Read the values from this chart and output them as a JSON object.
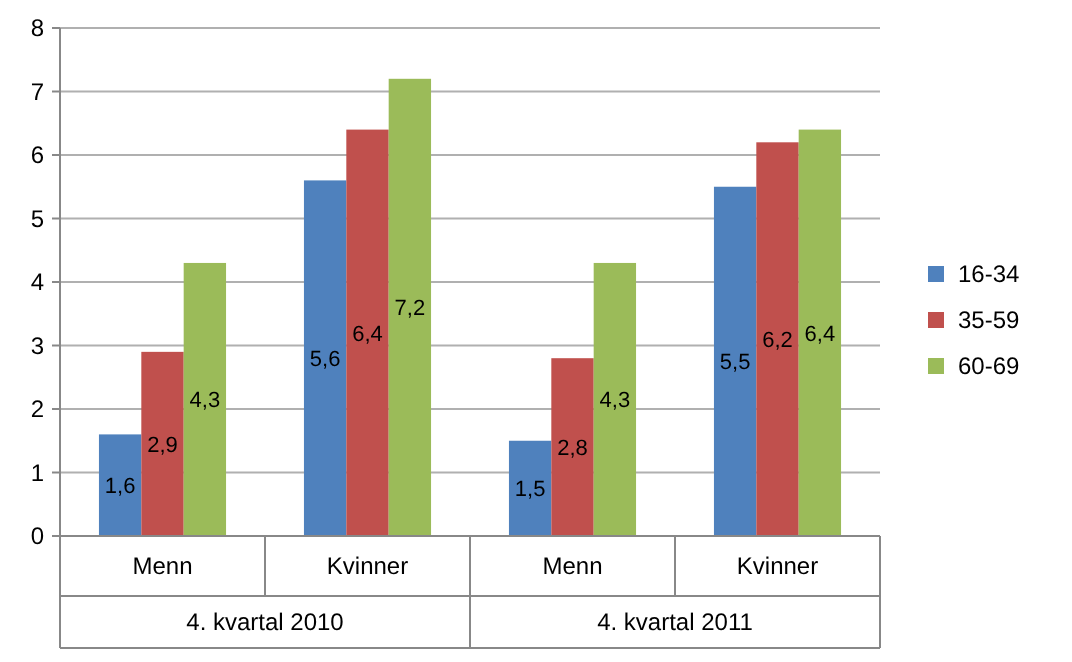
{
  "chart_data": {
    "type": "bar",
    "categories": [
      "Menn",
      "Kvinner",
      "Menn",
      "Kvinner"
    ],
    "series": [
      {
        "name": "16-34",
        "color": "#4f81bd",
        "values": [
          1.6,
          5.6,
          1.5,
          5.5
        ],
        "value_labels": [
          "1,6",
          "5,6",
          "1,5",
          "5,5"
        ]
      },
      {
        "name": "35-59",
        "color": "#c0504d",
        "values": [
          2.9,
          6.4,
          2.8,
          6.2
        ],
        "value_labels": [
          "2,9",
          "6,4",
          "2,8",
          "6,2"
        ]
      },
      {
        "name": "60-69",
        "color": "#9bbb59",
        "values": [
          4.3,
          7.2,
          4.3,
          6.4
        ],
        "value_labels": [
          "4,3",
          "7,2",
          "4,3",
          "6,4"
        ]
      }
    ],
    "annotations": [
      "4. kvartal 2010",
      "4. kvartal 2011"
    ],
    "ylim": [
      0,
      8
    ],
    "yticks": [
      0,
      1,
      2,
      3,
      4,
      5,
      6,
      7,
      8
    ],
    "grid": "y",
    "legend": "right"
  }
}
